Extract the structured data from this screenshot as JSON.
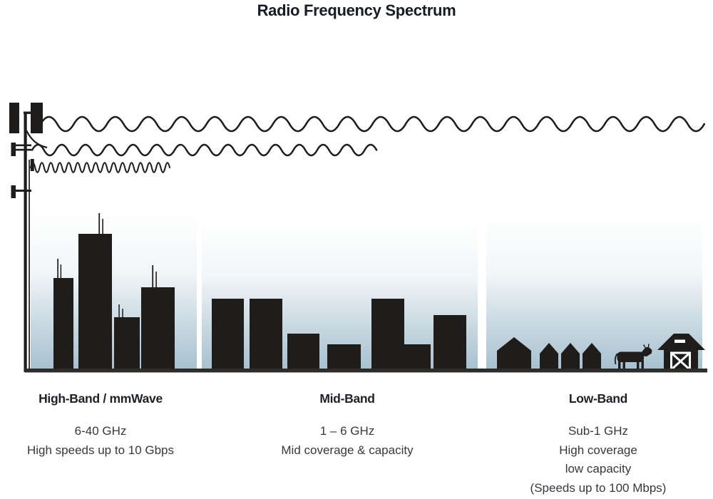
{
  "title": "Radio Frequency Spectrum",
  "colors": {
    "ink": "#1f1d1c",
    "title": "#161b24",
    "label": "#1e2126",
    "text": "#35393d",
    "sky_top": "#ffffff",
    "sky_bottom": "#a6c0cf",
    "ground": "#2e2c29"
  },
  "bands": [
    {
      "label": "High-Band / mmWave",
      "frequency": "6-40 GHz",
      "lines": [
        "High speeds up to 10 Gbps"
      ],
      "wave": "short wavelength, shortest reach",
      "scene": "city skyscrapers with antennas"
    },
    {
      "label": "Mid-Band",
      "frequency": "1 – 6 GHz",
      "lines": [
        "Mid coverage & capacity"
      ],
      "wave": "medium wavelength, medium reach",
      "scene": "mid-rise buildings"
    },
    {
      "label": "Low-Band",
      "frequency": "Sub-1 GHz",
      "lines": [
        "High coverage",
        "low capacity",
        "(Speeds up to 100 Mbps)"
      ],
      "wave": "long wavelength, longest reach",
      "scene": "rural houses, cow and barn"
    }
  ]
}
